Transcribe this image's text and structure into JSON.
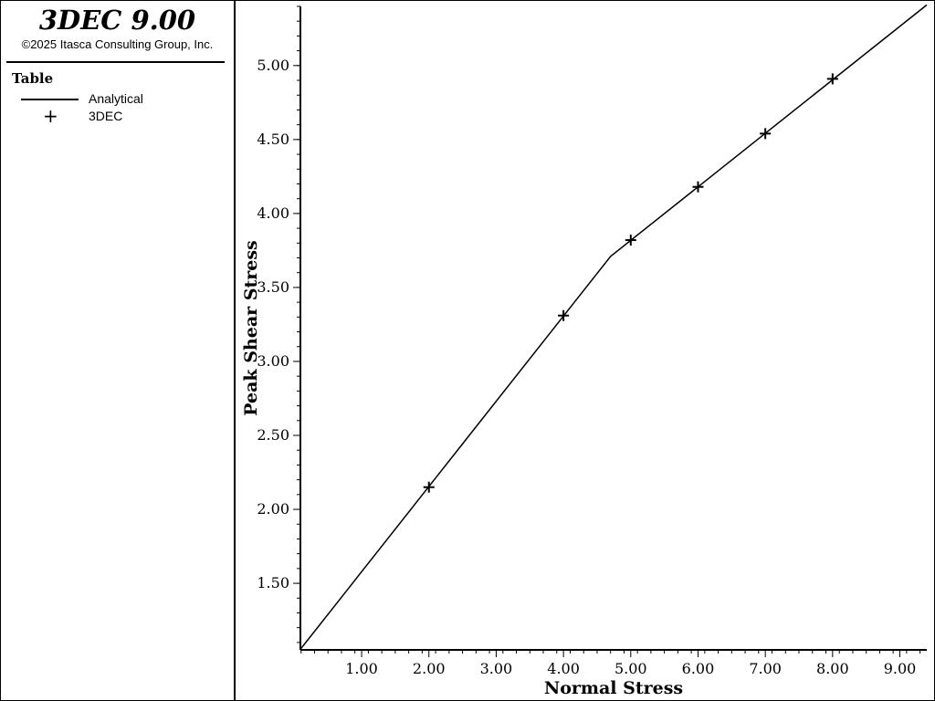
{
  "app": {
    "title": "3DEC 9.00",
    "copyright": "©2025 Itasca Consulting Group, Inc."
  },
  "legend": {
    "title": "Table",
    "items": [
      {
        "label": "Analytical",
        "symbol": "line"
      },
      {
        "label": "3DEC",
        "symbol": "plus"
      }
    ]
  },
  "chart_data": {
    "type": "line",
    "xlabel": "Normal Stress",
    "ylabel": "Peak Shear Stress",
    "xlim": [
      0.09,
      9.4
    ],
    "ylim": [
      1.05,
      5.4
    ],
    "xticks": [
      1.0,
      2.0,
      3.0,
      4.0,
      5.0,
      6.0,
      7.0,
      8.0,
      9.0
    ],
    "xtick_labels": [
      "1.00",
      "2.00",
      "3.00",
      "4.00",
      "5.00",
      "6.00",
      "7.00",
      "8.00",
      "9.00"
    ],
    "yticks": [
      1.5,
      2.0,
      2.5,
      3.0,
      3.5,
      4.0,
      4.5,
      5.0
    ],
    "ytick_labels": [
      "1.50",
      "2.00",
      "2.50",
      "3.00",
      "3.50",
      "4.00",
      "4.50",
      "5.00"
    ],
    "grid": false,
    "series": [
      {
        "name": "Analytical",
        "style": "line",
        "x": [
          0.1,
          4.7,
          9.4
        ],
        "y": [
          1.06,
          3.71,
          5.41
        ]
      },
      {
        "name": "3DEC",
        "style": "plus",
        "x": [
          2.0,
          4.0,
          5.0,
          6.0,
          7.0,
          8.0
        ],
        "y": [
          2.15,
          3.31,
          3.82,
          4.18,
          4.54,
          4.91
        ]
      }
    ]
  }
}
